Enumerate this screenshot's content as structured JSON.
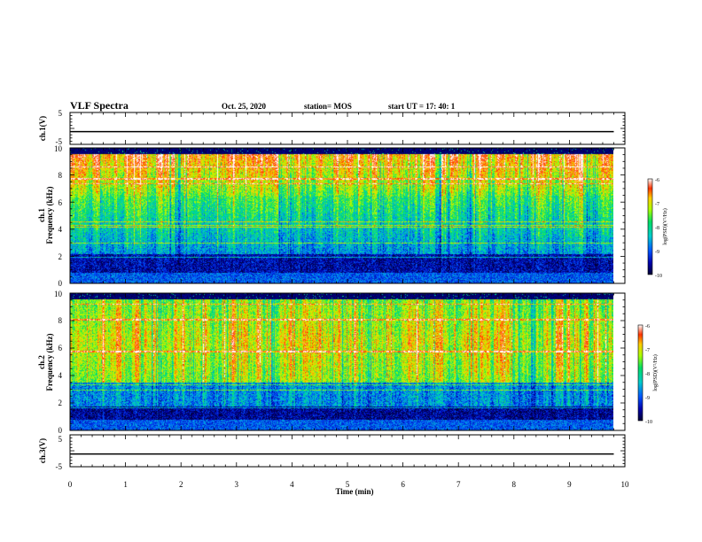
{
  "header": {
    "title": "VLF Spectra",
    "date": "Oct. 25, 2020",
    "station": "station= MOS",
    "start_ut": "start  UT  =   17: 40: 1"
  },
  "chart_data": [
    {
      "type": "line",
      "panel": "ch1-voltage",
      "ylabel": "ch.1(V)",
      "ylim": [
        -5,
        5
      ],
      "yticks": [
        "5",
        "-5"
      ],
      "x": [
        0,
        9.8
      ],
      "y": [
        -1,
        -1
      ]
    },
    {
      "type": "heatmap",
      "panel": "ch1-spectrogram",
      "ylabel_line1": "ch.1",
      "ylabel_line2": "Frequency  (kHz)",
      "ylim": [
        0,
        10
      ],
      "yticks": [
        "0",
        "2",
        "4",
        "6",
        "8",
        "10"
      ],
      "x_range_min": [
        0,
        9.8
      ],
      "colorbar": {
        "label": "log(PSD)(V²/Hz)",
        "range": [
          -10,
          -6
        ],
        "ticks": [
          "-6",
          "-7",
          "-8",
          "-9",
          "-10"
        ]
      },
      "noise_band_khz": [
        0.5,
        10
      ]
    },
    {
      "type": "heatmap",
      "panel": "ch2-spectrogram",
      "ylabel_line1": "ch.2",
      "ylabel_line2": "Frequency  (kHz)",
      "ylim": [
        0,
        10
      ],
      "yticks": [
        "0",
        "2",
        "4",
        "6",
        "8",
        "10"
      ],
      "x_range_min": [
        0,
        9.8
      ],
      "colorbar": {
        "label": "log(PSD)(V²/Hz)",
        "range": [
          -10,
          -6
        ],
        "ticks": [
          "-6",
          "-7",
          "-8",
          "-9",
          "-10"
        ]
      },
      "noise_band_khz": [
        0.3,
        10
      ]
    },
    {
      "type": "line",
      "panel": "ch3-voltage",
      "ylabel": "ch.3(V)",
      "ylim": [
        -5,
        5
      ],
      "yticks": [
        "5",
        "-5"
      ],
      "x": [
        0,
        9.8
      ],
      "y": [
        -1,
        -1
      ]
    }
  ],
  "x_axis": {
    "label": "Time  (min)",
    "xlim": [
      0,
      10
    ],
    "ticks": [
      "0",
      "1",
      "2",
      "3",
      "4",
      "5",
      "6",
      "7",
      "8",
      "9",
      "10"
    ]
  },
  "colormap": [
    "#000033",
    "#0000aa",
    "#0055ff",
    "#00cccc",
    "#00dd66",
    "#aaff00",
    "#ffcc00",
    "#ff3300",
    "#ffffff"
  ]
}
